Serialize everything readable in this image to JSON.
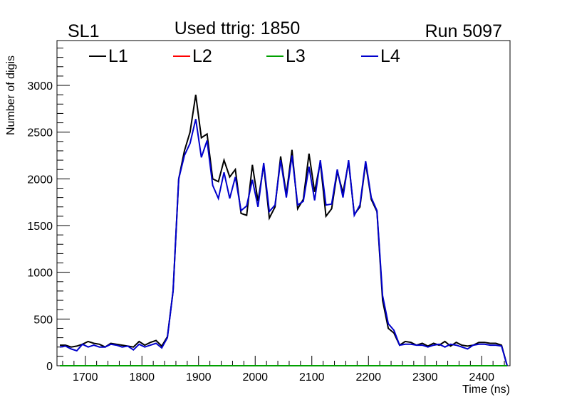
{
  "chart_data": {
    "type": "line",
    "title": "Used ttrig: 1850",
    "left_label": "SL1",
    "right_label": "Run 5097",
    "xlabel": "Time (ns)",
    "ylabel": "Number of digis",
    "xlim": [
      1650,
      2450
    ],
    "ylim": [
      0,
      3480
    ],
    "x_ticks": [
      1700,
      1800,
      1900,
      2000,
      2100,
      2200,
      2300,
      2400
    ],
    "y_ticks": [
      0,
      500,
      1000,
      1500,
      2000,
      2500,
      3000
    ],
    "legend_position": "top",
    "x": [
      1655,
      1665,
      1675,
      1685,
      1695,
      1705,
      1715,
      1725,
      1735,
      1745,
      1755,
      1765,
      1775,
      1785,
      1795,
      1805,
      1815,
      1825,
      1835,
      1845,
      1855,
      1865,
      1875,
      1885,
      1895,
      1905,
      1915,
      1925,
      1935,
      1945,
      1955,
      1965,
      1975,
      1985,
      1995,
      2005,
      2015,
      2025,
      2035,
      2045,
      2055,
      2065,
      2075,
      2085,
      2095,
      2105,
      2115,
      2125,
      2135,
      2145,
      2155,
      2165,
      2175,
      2185,
      2195,
      2205,
      2215,
      2225,
      2235,
      2245,
      2255,
      2265,
      2275,
      2285,
      2295,
      2305,
      2315,
      2325,
      2335,
      2345,
      2355,
      2365,
      2375,
      2385,
      2395,
      2405,
      2415,
      2425,
      2435,
      2445
    ],
    "series": [
      {
        "name": "L1",
        "color": "#000000",
        "values": [
          220,
          220,
          200,
          210,
          230,
          260,
          240,
          230,
          200,
          240,
          230,
          220,
          210,
          200,
          260,
          220,
          250,
          270,
          210,
          310,
          800,
          2000,
          2300,
          2500,
          2900,
          2440,
          2480,
          2000,
          1970,
          2200,
          2020,
          2100,
          1630,
          1610,
          2150,
          1760,
          2150,
          1580,
          1700,
          2240,
          1830,
          2310,
          1680,
          1780,
          2270,
          1860,
          2180,
          1600,
          1680,
          2080,
          1850,
          2180,
          1620,
          1700,
          2170,
          1780,
          1650,
          700,
          400,
          350,
          220,
          260,
          250,
          220,
          240,
          210,
          240,
          220,
          260,
          210,
          250,
          220,
          210,
          220,
          250,
          250,
          240,
          240,
          220,
          0
        ]
      },
      {
        "name": "L2",
        "color": "#ff0000",
        "values": [
          0,
          0,
          0,
          0,
          0,
          0,
          0,
          0,
          0,
          0,
          0,
          0,
          0,
          0,
          0,
          0,
          0,
          0,
          0,
          0,
          0,
          0,
          0,
          0,
          0,
          0,
          0,
          0,
          0,
          0,
          0,
          0,
          0,
          0,
          0,
          0,
          0,
          0,
          0,
          0,
          0,
          0,
          0,
          0,
          0,
          0,
          0,
          0,
          0,
          0,
          0,
          0,
          0,
          0,
          0,
          0,
          0,
          0,
          0,
          0,
          0,
          0,
          0,
          0,
          0,
          0,
          0,
          0,
          0,
          0,
          0,
          0,
          0,
          0,
          0,
          0,
          0,
          0,
          0,
          0
        ]
      },
      {
        "name": "L3",
        "color": "#00a000",
        "values": [
          0,
          0,
          0,
          0,
          0,
          0,
          0,
          0,
          0,
          0,
          0,
          0,
          0,
          0,
          0,
          0,
          0,
          0,
          0,
          0,
          0,
          0,
          0,
          0,
          0,
          0,
          0,
          0,
          0,
          0,
          0,
          0,
          0,
          0,
          0,
          0,
          0,
          0,
          0,
          0,
          0,
          0,
          0,
          0,
          0,
          0,
          0,
          0,
          0,
          0,
          0,
          0,
          0,
          0,
          0,
          0,
          0,
          0,
          0,
          0,
          0,
          0,
          0,
          0,
          0,
          0,
          0,
          0,
          0,
          0,
          0,
          0,
          0,
          0,
          0,
          0,
          0,
          0,
          0,
          0
        ]
      },
      {
        "name": "L4",
        "color": "#0000cc",
        "values": [
          200,
          210,
          180,
          160,
          230,
          200,
          220,
          200,
          200,
          230,
          220,
          200,
          210,
          170,
          230,
          200,
          220,
          240,
          190,
          300,
          800,
          2000,
          2250,
          2380,
          2640,
          2230,
          2410,
          1930,
          1790,
          2070,
          1790,
          2020,
          1660,
          1710,
          1990,
          1700,
          2170,
          1650,
          1720,
          2200,
          1800,
          2250,
          1720,
          1760,
          2130,
          1770,
          2200,
          1720,
          1730,
          2100,
          1800,
          2200,
          1610,
          1720,
          2190,
          1800,
          1660,
          750,
          450,
          380,
          220,
          230,
          230,
          220,
          220,
          200,
          220,
          230,
          200,
          230,
          220,
          200,
          180,
          220,
          230,
          230,
          220,
          220,
          210,
          0
        ]
      }
    ]
  }
}
